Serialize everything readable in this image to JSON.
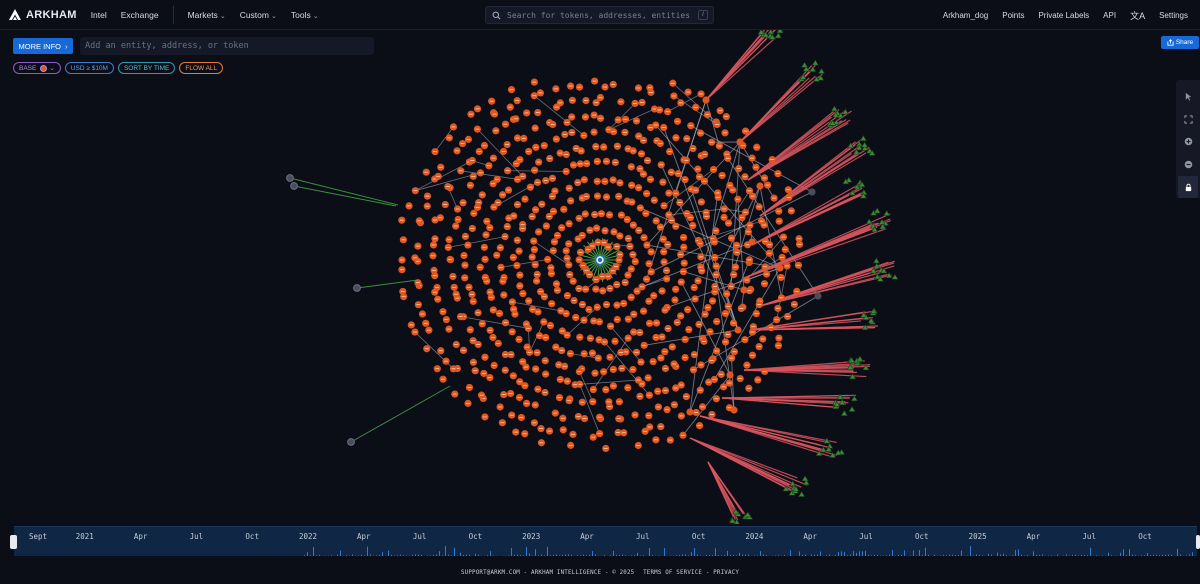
{
  "topbar": {
    "brand": "ARKHAM",
    "nav_left": [
      "Intel",
      "Exchange"
    ],
    "nav_dropdowns": [
      "Markets",
      "Custom",
      "Tools"
    ],
    "search_placeholder": "Search for tokens, addresses, entities...",
    "search_shortcut": "/",
    "nav_right": [
      "Arkham_dog",
      "Points",
      "Private Labels",
      "API",
      "Settings"
    ],
    "translate_icon": "translate-icon"
  },
  "controls": {
    "more_info_label": "MORE INFO",
    "entity_placeholder": "Add an entity, address, or token",
    "chips": {
      "base": "BASE",
      "usd": "USD ≥ $10M",
      "sort": "SORT BY TIME",
      "flow": "FLOW ALL"
    },
    "share_label": "Share"
  },
  "toolbar": {
    "tools": [
      "pointer-icon",
      "fit-screen-icon",
      "zoom-in-icon",
      "zoom-out-icon",
      "lock-icon"
    ]
  },
  "colors": {
    "background": "#0b0d17",
    "node_orange": "#e0571f",
    "edge_gray": "#b9bcc6",
    "edge_red": "#d9575f",
    "edge_green": "#49b04a",
    "center_node": "#1769d8",
    "accent_blue": "#1769d8"
  },
  "timeline": {
    "labels": [
      "Sept",
      "2021",
      "Apr",
      "Jul",
      "Oct",
      "2022",
      "Apr",
      "Jul",
      "Oct",
      "2023",
      "Apr",
      "Jul",
      "Oct",
      "2024",
      "Apr",
      "Jul",
      "Oct",
      "2025",
      "Apr",
      "Jul",
      "Oct"
    ]
  },
  "footer": {
    "text": "SUPPORT@ARKM.COM - ARKHAM INTELLIGENCE - © 2025",
    "terms": "TERMS OF SERVICE",
    "privacy": "PRIVACY"
  }
}
